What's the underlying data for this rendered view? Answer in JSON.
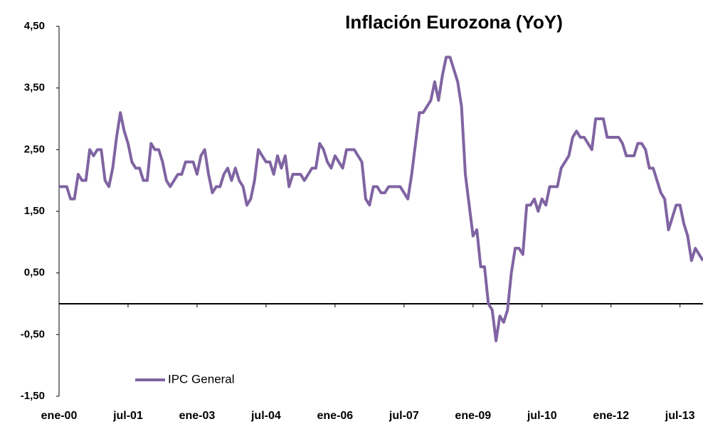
{
  "chart_data": {
    "type": "line",
    "title": "Inflación Eurozona (YoY)",
    "categories": [
      "ene-00",
      null,
      null,
      null,
      null,
      null,
      null,
      null,
      null,
      null,
      null,
      null,
      null,
      null,
      null,
      null,
      null,
      null,
      "jul-01",
      null,
      null,
      null,
      null,
      null,
      null,
      null,
      null,
      null,
      null,
      null,
      null,
      null,
      null,
      null,
      null,
      null,
      "ene-03",
      null,
      null,
      null,
      null,
      null,
      null,
      null,
      null,
      null,
      null,
      null,
      null,
      null,
      null,
      null,
      null,
      null,
      "jul-04",
      null,
      null,
      null,
      null,
      null,
      null,
      null,
      null,
      null,
      null,
      null,
      null,
      null,
      null,
      null,
      null,
      null,
      "ene-06",
      null,
      null,
      null,
      null,
      null,
      null,
      null,
      null,
      null,
      null,
      null,
      null,
      null,
      null,
      null,
      null,
      null,
      "jul-07",
      null,
      null,
      null,
      null,
      null,
      null,
      null,
      null,
      null,
      null,
      null,
      null,
      null,
      null,
      null,
      null,
      null,
      "ene-09",
      null,
      null,
      null,
      null,
      null,
      null,
      null,
      null,
      null,
      null,
      null,
      null,
      null,
      null,
      null,
      null,
      null,
      "jul-10",
      null,
      null,
      null,
      null,
      null,
      null,
      null,
      null,
      null,
      null,
      null,
      null,
      null,
      null,
      null,
      null,
      null,
      "ene-12",
      null,
      null,
      null,
      null,
      null,
      null,
      null,
      null,
      null,
      null,
      null,
      null,
      null,
      null,
      null,
      null,
      null,
      "jul-13",
      null,
      null,
      null,
      null,
      null,
      null
    ],
    "series": [
      {
        "name": "IPC General",
        "color": "#8064a2",
        "values": [
          1.9,
          1.9,
          1.9,
          1.7,
          1.7,
          2.1,
          2.0,
          2.0,
          2.5,
          2.4,
          2.5,
          2.5,
          2.0,
          1.9,
          2.2,
          2.7,
          3.1,
          2.8,
          2.6,
          2.3,
          2.2,
          2.2,
          2.0,
          2.0,
          2.6,
          2.5,
          2.5,
          2.3,
          2.0,
          1.9,
          2.0,
          2.1,
          2.1,
          2.3,
          2.3,
          2.3,
          2.1,
          2.4,
          2.5,
          2.1,
          1.8,
          1.9,
          1.9,
          2.1,
          2.2,
          2.0,
          2.2,
          2.0,
          1.9,
          1.6,
          1.7,
          2.0,
          2.5,
          2.4,
          2.3,
          2.3,
          2.1,
          2.4,
          2.2,
          2.4,
          1.9,
          2.1,
          2.1,
          2.1,
          2.0,
          2.1,
          2.2,
          2.2,
          2.6,
          2.5,
          2.3,
          2.2,
          2.4,
          2.3,
          2.2,
          2.5,
          2.5,
          2.5,
          2.4,
          2.3,
          1.7,
          1.6,
          1.9,
          1.9,
          1.8,
          1.8,
          1.9,
          1.9,
          1.9,
          1.9,
          1.8,
          1.7,
          2.1,
          2.6,
          3.1,
          3.1,
          3.2,
          3.3,
          3.6,
          3.3,
          3.7,
          4.0,
          4.0,
          3.8,
          3.6,
          3.2,
          2.1,
          1.6,
          1.1,
          1.2,
          0.6,
          0.6,
          0.0,
          -0.1,
          -0.6,
          -0.2,
          -0.3,
          -0.1,
          0.5,
          0.9,
          0.9,
          0.8,
          1.6,
          1.6,
          1.7,
          1.5,
          1.7,
          1.6,
          1.9,
          1.9,
          1.9,
          2.2,
          2.3,
          2.4,
          2.7,
          2.8,
          2.7,
          2.7,
          2.6,
          2.5,
          3.0,
          3.0,
          3.0,
          2.7,
          2.7,
          2.7,
          2.7,
          2.6,
          2.4,
          2.4,
          2.4,
          2.6,
          2.6,
          2.5,
          2.2,
          2.2,
          2.0,
          1.8,
          1.7,
          1.2,
          1.4,
          1.6,
          1.6,
          1.3,
          1.1,
          0.7,
          0.9,
          0.8,
          0.7
        ]
      }
    ],
    "ylim": [
      -1.5,
      4.5
    ],
    "yticks": [
      {
        "value": -1.5,
        "label": "-1,50"
      },
      {
        "value": -0.5,
        "label": "-0,50"
      },
      {
        "value": 0.5,
        "label": "0,50"
      },
      {
        "value": 1.5,
        "label": "1,50"
      },
      {
        "value": 2.5,
        "label": "2,50"
      },
      {
        "value": 3.5,
        "label": "3,50"
      },
      {
        "value": 4.5,
        "label": "4,50"
      }
    ],
    "legend": "lower left"
  }
}
